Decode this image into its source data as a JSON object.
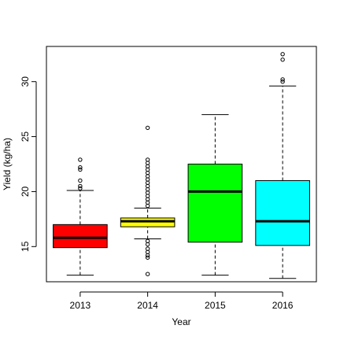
{
  "chart_data": {
    "type": "boxplot",
    "title": "",
    "xlabel": "Year",
    "ylabel": "Yield (kg/ha)",
    "ylim": [
      11.8,
      33.2
    ],
    "yticks": [
      15,
      20,
      25,
      30
    ],
    "grid": false,
    "legend": "none",
    "categories": [
      "2013",
      "2014",
      "2015",
      "2016"
    ],
    "boxes": [
      {
        "category": "2013",
        "color": "#ff0000",
        "whisker_low": 12.4,
        "q1": 14.9,
        "median": 15.8,
        "q3": 17.0,
        "whisker_high": 20.1,
        "outliers": [
          20.3,
          20.5,
          21.0,
          22.0,
          22.2,
          22.9
        ]
      },
      {
        "category": "2014",
        "color": "#ffff00",
        "whisker_low": 15.7,
        "q1": 16.8,
        "median": 17.3,
        "q3": 17.6,
        "whisker_high": 18.5,
        "outliers": [
          12.5,
          14.0,
          14.2,
          14.5,
          14.8,
          15.2,
          15.5,
          18.7,
          19.0,
          19.3,
          19.6,
          19.9,
          20.2,
          20.5,
          20.8,
          21.1,
          21.4,
          21.7,
          22.0,
          22.3,
          22.6,
          22.9,
          25.8
        ]
      },
      {
        "category": "2015",
        "color": "#00ff00",
        "whisker_low": 12.4,
        "q1": 15.4,
        "median": 20.0,
        "q3": 22.5,
        "whisker_high": 27.0,
        "outliers": []
      },
      {
        "category": "2016",
        "color": "#00ffff",
        "whisker_low": 12.1,
        "q1": 15.1,
        "median": 17.3,
        "q3": 21.0,
        "whisker_high": 29.6,
        "outliers": [
          30.0,
          30.2,
          32.0,
          32.5
        ]
      }
    ]
  }
}
